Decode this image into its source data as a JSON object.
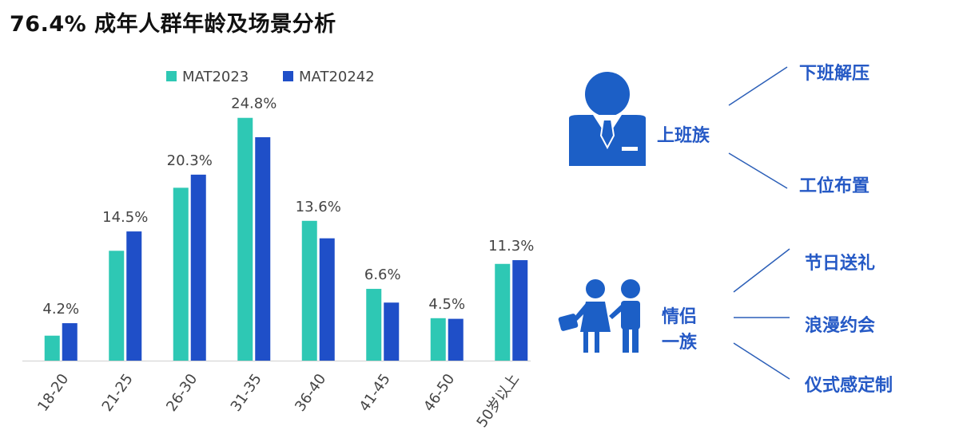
{
  "title": "76.4% 成年人群年龄及场景分析",
  "colors": {
    "series_teal": "#2ec8b4",
    "series_blue": "#1f4fc8",
    "label_blue": "#2559c5",
    "icon_blue": "#1c5fc6",
    "line_blue": "#2c5fb8",
    "axis": "#d0d0d0",
    "text_gray": "#444444"
  },
  "chart_data": {
    "type": "bar",
    "title": "",
    "xlabel": "",
    "ylabel": "",
    "categories": [
      "18-20",
      "21-25",
      "26-30",
      "31-35",
      "36-40",
      "41-45",
      "46-50",
      "50岁以上"
    ],
    "series": [
      {
        "name": "MAT2023",
        "values": [
          4.0,
          17.6,
          27.7,
          38.9,
          22.4,
          11.5,
          6.8,
          15.5
        ]
      },
      {
        "name": "MAT20242",
        "values": [
          6.0,
          20.7,
          29.8,
          35.8,
          19.6,
          9.3,
          6.7,
          16.1
        ]
      }
    ],
    "data_labels": [
      "4.2%",
      "14.5%",
      "20.3%",
      "24.8%",
      "13.6%",
      "6.6%",
      "4.5%",
      "11.3%"
    ],
    "legend_position": "top",
    "grid": false,
    "ylim": [
      0,
      45
    ]
  },
  "right_panel": {
    "office_worker": {
      "icon": "office-worker-icon",
      "label": "上班族",
      "scenes": [
        "下班解压",
        "工位布置"
      ]
    },
    "couple": {
      "icon": "couple-icon",
      "label_line1": "情侣",
      "label_line2": "一族",
      "scenes": [
        "节日送礼",
        "浪漫约会",
        "仪式感定制"
      ]
    }
  }
}
